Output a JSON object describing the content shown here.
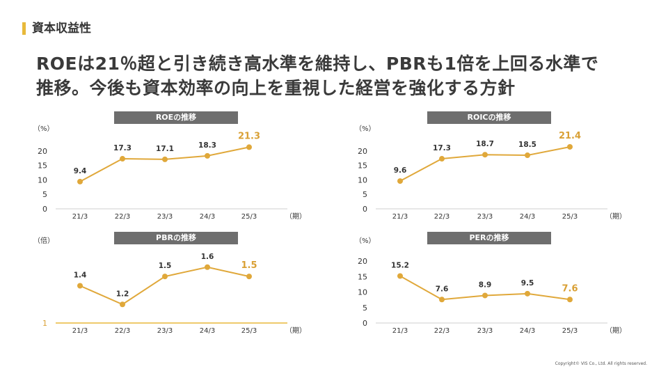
{
  "section": {
    "title": "資本収益性"
  },
  "headline": {
    "line1": "ROEは21％超と引き続き高水準を維持し、PBRも1倍を上回る水準で",
    "line2": "推移。今後も資本効率の向上を重視した経営を強化する方針"
  },
  "colors": {
    "accent": "#e8b93a",
    "line": "#e0a83a",
    "highlight": "#d9a035",
    "title_bg": "#6e6e6e"
  },
  "chart_data": [
    {
      "id": "roe",
      "type": "line",
      "title": "ROEの推移",
      "unit_label": "（%）",
      "period_label": "（期）",
      "categories": [
        "21/3",
        "22/3",
        "23/3",
        "24/3",
        "25/3"
      ],
      "series": [
        {
          "values": [
            9.4,
            17.3,
            17.1,
            18.3,
            21.3
          ]
        }
      ],
      "value_labels": [
        "9.4",
        "17.3",
        "17.1",
        "18.3",
        "21.3"
      ],
      "yticks": [
        "0",
        "5",
        "10",
        "15",
        "20"
      ],
      "ylim": [
        0,
        25
      ],
      "highlight_last": true
    },
    {
      "id": "roic",
      "type": "line",
      "title": "ROICの推移",
      "unit_label": "（%）",
      "period_label": "（期）",
      "categories": [
        "21/3",
        "22/3",
        "23/3",
        "24/3",
        "25/3"
      ],
      "series": [
        {
          "values": [
            9.6,
            17.3,
            18.7,
            18.5,
            21.4
          ]
        }
      ],
      "value_labels": [
        "9.6",
        "17.3",
        "18.7",
        "18.5",
        "21.4"
      ],
      "yticks": [
        "0",
        "5",
        "10",
        "15",
        "20"
      ],
      "ylim": [
        0,
        25
      ],
      "highlight_last": true
    },
    {
      "id": "pbr",
      "type": "line",
      "title": "PBRの推移",
      "unit_label": "（倍）",
      "period_label": "（期）",
      "categories": [
        "21/3",
        "22/3",
        "23/3",
        "24/3",
        "25/3"
      ],
      "series": [
        {
          "values": [
            1.4,
            1.2,
            1.5,
            1.6,
            1.5
          ]
        }
      ],
      "value_labels": [
        "1.4",
        "1.2",
        "1.5",
        "1.6",
        "1.5"
      ],
      "yticks": [
        "1"
      ],
      "ylim": [
        1,
        1.83
      ],
      "baseline": 1,
      "highlight_last": true
    },
    {
      "id": "per",
      "type": "line",
      "title": "PERの推移",
      "unit_label": "（%）",
      "period_label": "（期）",
      "categories": [
        "21/3",
        "22/3",
        "23/3",
        "24/3",
        "25/3"
      ],
      "series": [
        {
          "values": [
            15.2,
            7.6,
            8.9,
            9.5,
            7.6
          ]
        }
      ],
      "value_labels": [
        "15.2",
        "7.6",
        "8.9",
        "9.5",
        "7.6"
      ],
      "yticks": [
        "0",
        "5",
        "10",
        "15",
        "20"
      ],
      "ylim": [
        0,
        25
      ],
      "highlight_last": true
    }
  ],
  "footer": {
    "copyright": "Copyright© VIS Co., Ltd. All rights reserved."
  }
}
